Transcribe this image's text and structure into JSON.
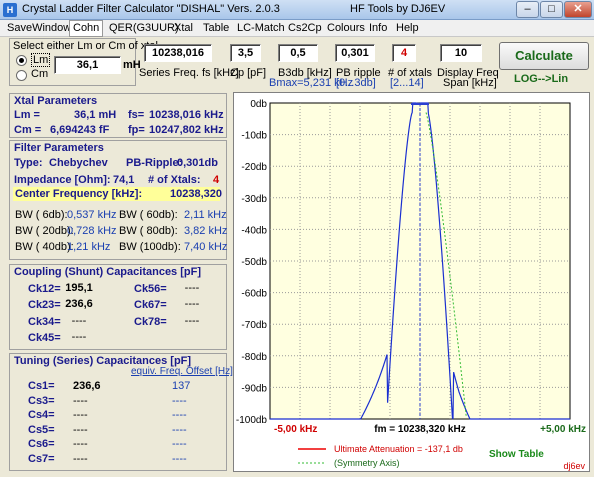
{
  "window": {
    "title": "Crystal Ladder Filter Calculator  \"DISHAL\"  Vers. 2.0.3",
    "author": "HF Tools by DJ6EV",
    "icon_label": "H"
  },
  "menu": [
    "SaveWindow",
    "Cohn",
    "QER(G3UUR)",
    "Xtal",
    "Table",
    "LC-Match",
    "Cs2Cp",
    "Colours",
    "Info",
    "Help"
  ],
  "input": {
    "select_label": "Select either Lm or Cm of xtal",
    "lm_label": "Lm",
    "cm_label": "Cm",
    "lm_value": "36,1",
    "lm_unit": "mH",
    "series_freq": "10238,016",
    "series_freq_label": "Series Freq. fs [kHz]",
    "cp": "3,5",
    "cp_label": "Cp [pF]",
    "b3db": "0,5",
    "b3db_label": "B3db [kHz]",
    "bmax": "Bmax=5,231 kHz",
    "pb_ripple": "0,301",
    "pb_ripple_label": "PB ripple",
    "pb_ripple_range": "[0...3db]",
    "n_xtals": "4",
    "n_xtals_label": "# of xtals",
    "n_xtals_range": "[2...14]",
    "span": "10",
    "span_label": "Display Freq",
    "span_unit": "Span [kHz]",
    "calc_label": "Calculate",
    "lo_lin": "LOG-->Lin"
  },
  "xtal": {
    "title": "Xtal Parameters",
    "lm_label": "Lm =",
    "lm": "36,1 mH",
    "fs_label": "fs=",
    "fs": "10238,016 kHz",
    "cm_label": "Cm =",
    "cm": "6,694243  fF",
    "fp_label": "fp=",
    "fp": "10247,802 kHz"
  },
  "filter": {
    "title": "Filter Parameters",
    "type_label": "Type:",
    "type": "Chebychev",
    "ripple_label": "PB-Ripple:",
    "ripple": "0,301db",
    "imp_label": "Impedance [Ohm]:",
    "imp": "74,1",
    "nx_label": "# of Xtals:",
    "nx": "4",
    "cf_label": "Center Frequency [kHz]:",
    "cf": "10238,320",
    "bw": [
      {
        "l": "BW (  6db):",
        "v": "0,537 kHz",
        "l2": "BW ( 60db):",
        "v2": "2,11 kHz"
      },
      {
        "l": "BW ( 20db):",
        "v": "0,728 kHz",
        "l2": "BW ( 80db):",
        "v2": "3,82 kHz"
      },
      {
        "l": "BW ( 40db):",
        "v": "1,21 kHz",
        "l2": "BW (100db):",
        "v2": "7,40 kHz"
      }
    ]
  },
  "coupling": {
    "title": "Coupling (Shunt) Capacitances [pF]",
    "left": [
      {
        "l": "Ck12=",
        "v": "195,1"
      },
      {
        "l": "Ck23=",
        "v": "236,6"
      },
      {
        "l": "Ck34=",
        "v": "----"
      },
      {
        "l": "Ck45=",
        "v": "----"
      }
    ],
    "right": [
      {
        "l": "Ck56=",
        "v": "----"
      },
      {
        "l": "Ck67=",
        "v": "----"
      },
      {
        "l": "Ck78=",
        "v": "----"
      }
    ]
  },
  "tuning": {
    "title": "Tuning (Series) Capacitances [pF]",
    "offset_label": "equiv. Freq. Offset [Hz]",
    "rows": [
      {
        "l": "Cs1=",
        "v": "236,6",
        "o": "137"
      },
      {
        "l": "Cs3=",
        "v": "----",
        "o": "----"
      },
      {
        "l": "Cs4=",
        "v": "----",
        "o": "----"
      },
      {
        "l": "Cs5=",
        "v": "----",
        "o": "----"
      },
      {
        "l": "Cs6=",
        "v": "----",
        "o": "----"
      },
      {
        "l": "Cs7=",
        "v": "----",
        "o": "----"
      }
    ]
  },
  "chart": {
    "y_ticks": [
      "0db",
      "-10db",
      "-20db",
      "-30db",
      "-40db",
      "-50db",
      "-60db",
      "-70db",
      "-80db",
      "-90db",
      "-100db"
    ],
    "x_left": "-5,00 kHz",
    "x_center": "fm = 10238,320 kHz",
    "x_right": "+5,00 kHz",
    "legend_ult": "Ultimate Attenuation =  -137,1 db",
    "legend_sym": "(Symmetry Axis)",
    "show_table": "Show Table",
    "watermark": "dj6ev",
    "colors": {
      "response": "#1a2fd0",
      "symmetry": "#33bb33",
      "ultimate": "#ee0000",
      "bg": "#ffffe0"
    }
  }
}
